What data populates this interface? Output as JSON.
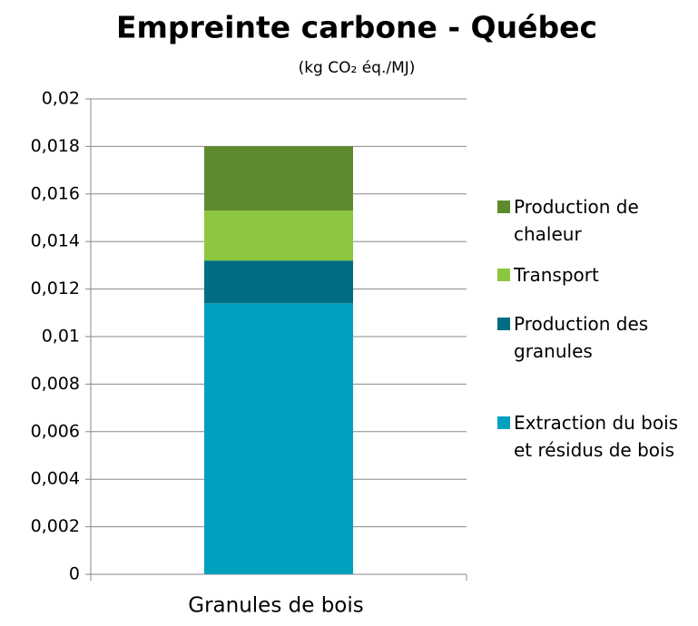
{
  "chart_data": {
    "type": "stacked_bar",
    "title": "Empreinte carbone - Québec",
    "subtitle": "(kg CO₂ éq./MJ)",
    "categories": [
      "Granules de bois"
    ],
    "series": [
      {
        "name": "Extraction du bois et résidus de bois",
        "color": "#00a0be",
        "values": [
          0.0114
        ]
      },
      {
        "name": "Production des granules",
        "color": "#006e82",
        "values": [
          0.0018
        ]
      },
      {
        "name": "Transport",
        "color": "#8dc63f",
        "values": [
          0.0021
        ]
      },
      {
        "name": "Production de chaleur",
        "color": "#5e8a2e",
        "values": [
          0.0027
        ]
      }
    ],
    "ylim": [
      0,
      0.02
    ],
    "yticks": [
      0,
      {
        "value": 0.002,
        "label": "0,002"
      },
      {
        "value": 0.004,
        "label": "0,004"
      },
      {
        "value": 0.006,
        "label": "0,006"
      },
      {
        "value": 0.008,
        "label": "0,008"
      },
      {
        "value": 0.01,
        "label": "0,01"
      },
      {
        "value": 0.012,
        "label": "0,012"
      },
      {
        "value": 0.014,
        "label": "0,014"
      },
      {
        "value": 0.016,
        "label": "0,016"
      },
      {
        "value": 0.018,
        "label": "0,018"
      },
      {
        "value": 0.02,
        "label": "0,02"
      }
    ],
    "grid": true,
    "legend": "right"
  }
}
